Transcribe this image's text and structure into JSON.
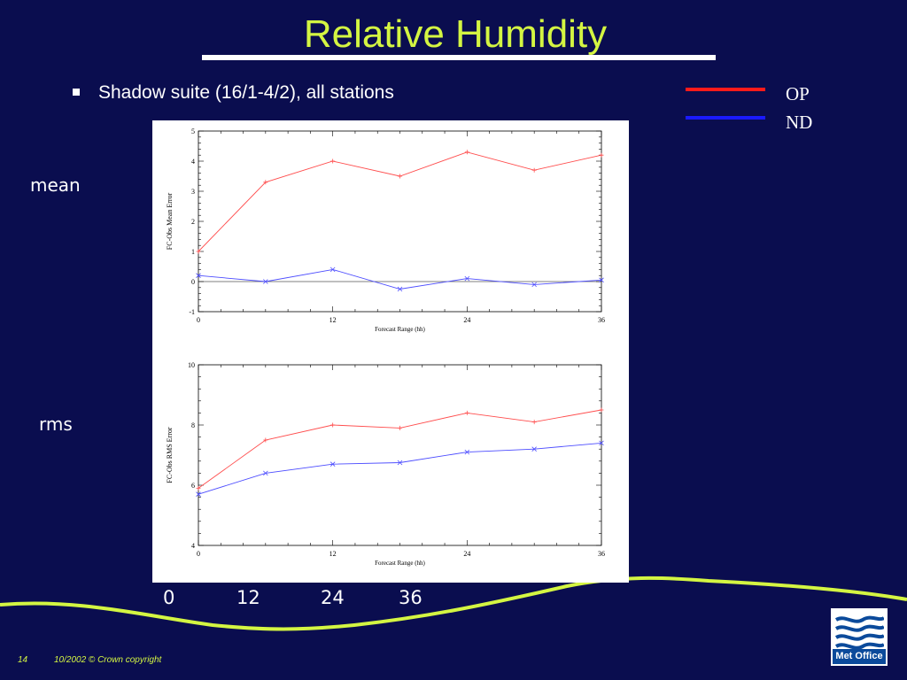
{
  "slide": {
    "title": "Relative Humidity",
    "bullet": "Shadow suite (16/1-4/2), all stations",
    "legend": [
      {
        "label": "OP",
        "color": "#ff1a1a"
      },
      {
        "label": "ND",
        "color": "#1a1aff"
      }
    ],
    "side_labels": {
      "mean": "mean",
      "rms": "rms"
    },
    "bottom_ticks": [
      "0",
      "12",
      "24",
      "36"
    ],
    "footer": {
      "page": "14",
      "copyright": "10/2002 © Crown copyright"
    },
    "logo": {
      "text": "Met Office",
      "icon": "met-office-waves-icon"
    },
    "colors": {
      "background": "#0a0d4f",
      "title": "#d4f542",
      "op": "#ff4d4d",
      "nd": "#4d4dff"
    }
  },
  "chart_data": [
    {
      "type": "line",
      "title": "",
      "xlabel": "Forecast Range (hh)",
      "ylabel": "FC-Obs Mean Error",
      "x": [
        0,
        6,
        12,
        18,
        24,
        30,
        36
      ],
      "xticks": [
        "0",
        "12",
        "24",
        "36"
      ],
      "yticks": [
        "-1",
        "0",
        "1",
        "2",
        "3",
        "4",
        "5"
      ],
      "xlim": [
        0,
        36
      ],
      "ylim": [
        -1,
        5
      ],
      "series": [
        {
          "name": "OP",
          "values": [
            1.0,
            3.3,
            4.0,
            3.5,
            4.3,
            3.7,
            4.2
          ]
        },
        {
          "name": "ND",
          "values": [
            0.2,
            0.0,
            0.4,
            -0.25,
            0.1,
            -0.1,
            0.05
          ]
        }
      ]
    },
    {
      "type": "line",
      "title": "",
      "xlabel": "Forecast Range (hh)",
      "ylabel": "FC-Obs RMS Error",
      "x": [
        0,
        6,
        12,
        18,
        24,
        30,
        36
      ],
      "xticks": [
        "0",
        "12",
        "24",
        "36"
      ],
      "yticks": [
        "4",
        "6",
        "8",
        "10"
      ],
      "xlim": [
        0,
        36
      ],
      "ylim": [
        4,
        10
      ],
      "series": [
        {
          "name": "OP",
          "values": [
            5.9,
            7.5,
            8.0,
            7.9,
            8.4,
            8.1,
            8.5
          ]
        },
        {
          "name": "ND",
          "values": [
            5.7,
            6.4,
            6.7,
            6.75,
            7.1,
            7.2,
            7.4
          ]
        }
      ]
    }
  ]
}
